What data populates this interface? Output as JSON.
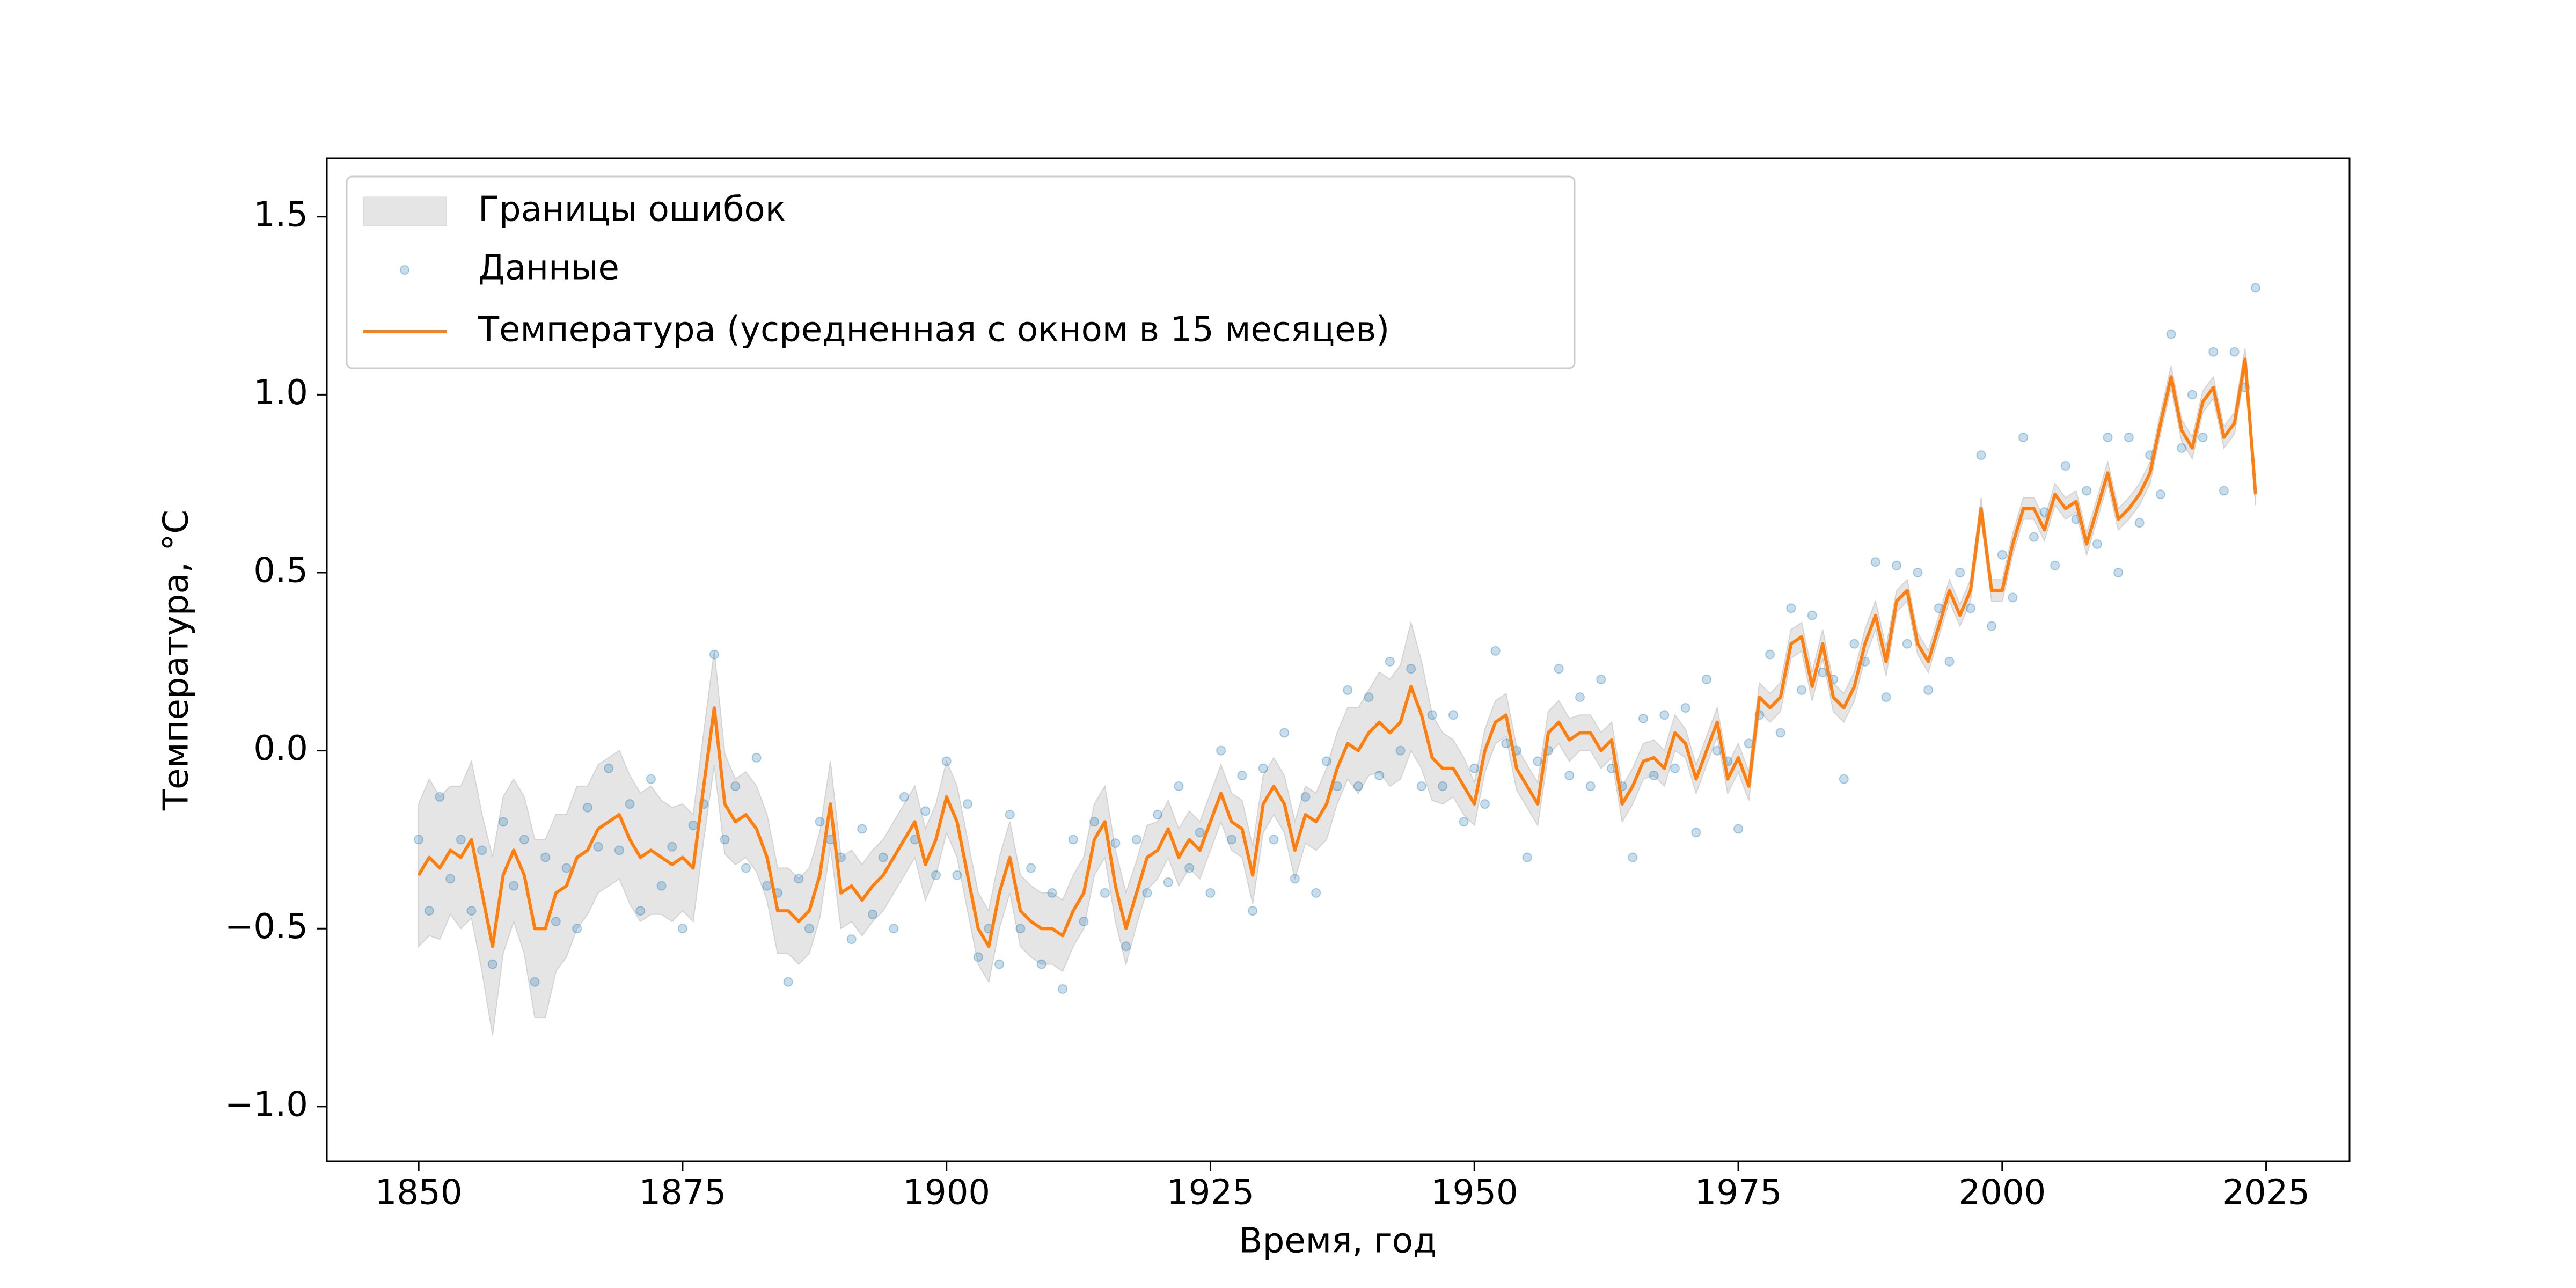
{
  "chart_data": {
    "type": "line",
    "xlabel": "Время, год",
    "ylabel": "Температура, °C",
    "xlim": [
      1841.3,
      2032.9
    ],
    "ylim": [
      -1.154,
      1.664
    ],
    "xticks": [
      1850,
      1875,
      1900,
      1925,
      1950,
      1975,
      2000,
      2025
    ],
    "yticks": [
      {
        "value": -1.0,
        "label": "−1.0"
      },
      {
        "value": -0.5,
        "label": "−0.5"
      },
      {
        "value": 0,
        "label": "0.0"
      },
      0.5,
      {
        "value": 1.0,
        "label": "1.0"
      },
      1.5
    ],
    "legend": "upper left",
    "x": [
      1850,
      1851,
      1852,
      1853,
      1854,
      1855,
      1856,
      1857,
      1858,
      1859,
      1860,
      1861,
      1862,
      1863,
      1864,
      1865,
      1866,
      1867,
      1868,
      1869,
      1870,
      1871,
      1872,
      1873,
      1874,
      1875,
      1876,
      1877,
      1878,
      1879,
      1880,
      1881,
      1882,
      1883,
      1884,
      1885,
      1886,
      1887,
      1888,
      1889,
      1890,
      1891,
      1892,
      1893,
      1894,
      1895,
      1896,
      1897,
      1898,
      1899,
      1900,
      1901,
      1902,
      1903,
      1904,
      1905,
      1906,
      1907,
      1908,
      1909,
      1910,
      1911,
      1912,
      1913,
      1914,
      1915,
      1916,
      1917,
      1918,
      1919,
      1920,
      1921,
      1922,
      1923,
      1924,
      1925,
      1926,
      1927,
      1928,
      1929,
      1930,
      1931,
      1932,
      1933,
      1934,
      1935,
      1936,
      1937,
      1938,
      1939,
      1940,
      1941,
      1942,
      1943,
      1944,
      1945,
      1946,
      1947,
      1948,
      1949,
      1950,
      1951,
      1952,
      1953,
      1954,
      1955,
      1956,
      1957,
      1958,
      1959,
      1960,
      1961,
      1962,
      1963,
      1964,
      1965,
      1966,
      1967,
      1968,
      1969,
      1970,
      1971,
      1972,
      1973,
      1974,
      1975,
      1976,
      1977,
      1978,
      1979,
      1980,
      1981,
      1982,
      1983,
      1984,
      1985,
      1986,
      1987,
      1988,
      1989,
      1990,
      1991,
      1992,
      1993,
      1994,
      1995,
      1996,
      1997,
      1998,
      1999,
      2000,
      2001,
      2002,
      2003,
      2004,
      2005,
      2006,
      2007,
      2008,
      2009,
      2010,
      2011,
      2012,
      2013,
      2014,
      2015,
      2016,
      2017,
      2018,
      2019,
      2020,
      2021,
      2022,
      2023,
      2024
    ],
    "series": [
      {
        "name": "Границы ошибок",
        "style": "band",
        "color": "#d3d3d3",
        "errors": [
          0.2,
          0.22,
          0.2,
          0.18,
          0.2,
          0.22,
          0.22,
          0.25,
          0.22,
          0.2,
          0.22,
          0.25,
          0.25,
          0.22,
          0.2,
          0.2,
          0.18,
          0.18,
          0.18,
          0.18,
          0.18,
          0.18,
          0.18,
          0.16,
          0.16,
          0.15,
          0.15,
          0.15,
          0.16,
          0.14,
          0.12,
          0.12,
          0.12,
          0.12,
          0.12,
          0.12,
          0.12,
          0.12,
          0.12,
          0.12,
          0.1,
          0.1,
          0.1,
          0.1,
          0.1,
          0.1,
          0.1,
          0.1,
          0.1,
          0.1,
          0.1,
          0.1,
          0.1,
          0.1,
          0.1,
          0.1,
          0.1,
          0.1,
          0.1,
          0.1,
          0.1,
          0.1,
          0.1,
          0.1,
          0.1,
          0.1,
          0.1,
          0.1,
          0.09,
          0.09,
          0.08,
          0.08,
          0.08,
          0.08,
          0.08,
          0.08,
          0.08,
          0.08,
          0.08,
          0.08,
          0.08,
          0.08,
          0.08,
          0.08,
          0.08,
          0.08,
          0.1,
          0.1,
          0.1,
          0.12,
          0.12,
          0.14,
          0.15,
          0.16,
          0.18,
          0.15,
          0.12,
          0.1,
          0.08,
          0.08,
          0.06,
          0.06,
          0.06,
          0.06,
          0.06,
          0.06,
          0.06,
          0.06,
          0.06,
          0.06,
          0.05,
          0.05,
          0.05,
          0.05,
          0.05,
          0.05,
          0.05,
          0.05,
          0.05,
          0.05,
          0.04,
          0.04,
          0.04,
          0.04,
          0.04,
          0.04,
          0.04,
          0.04,
          0.04,
          0.04,
          0.04,
          0.04,
          0.04,
          0.04,
          0.04,
          0.04,
          0.04,
          0.04,
          0.04,
          0.04,
          0.03,
          0.03,
          0.03,
          0.03,
          0.03,
          0.03,
          0.03,
          0.03,
          0.03,
          0.03,
          0.03,
          0.03,
          0.03,
          0.03,
          0.03,
          0.03,
          0.03,
          0.03,
          0.03,
          0.03,
          0.03,
          0.03,
          0.03,
          0.03,
          0.03,
          0.03,
          0.03,
          0.03,
          0.03,
          0.03,
          0.03,
          0.03,
          0.03,
          0.03,
          0.03
        ]
      },
      {
        "name": "Данные",
        "style": "scatter",
        "color": "#1f77b4",
        "values": [
          -0.25,
          -0.45,
          -0.13,
          -0.36,
          -0.25,
          -0.45,
          -0.28,
          -0.6,
          -0.2,
          -0.38,
          -0.25,
          -0.65,
          -0.3,
          -0.48,
          -0.33,
          -0.5,
          -0.16,
          -0.27,
          -0.05,
          -0.28,
          -0.15,
          -0.45,
          -0.08,
          -0.38,
          -0.27,
          -0.5,
          -0.21,
          -0.15,
          0.27,
          -0.25,
          -0.1,
          -0.33,
          -0.02,
          -0.38,
          -0.4,
          -0.65,
          -0.36,
          -0.5,
          -0.2,
          -0.25,
          -0.3,
          -0.53,
          -0.22,
          -0.46,
          -0.3,
          -0.5,
          -0.13,
          -0.25,
          -0.17,
          -0.35,
          -0.03,
          -0.35,
          -0.15,
          -0.58,
          -0.5,
          -0.6,
          -0.18,
          -0.5,
          -0.33,
          -0.6,
          -0.4,
          -0.67,
          -0.25,
          -0.48,
          -0.2,
          -0.4,
          -0.26,
          -0.55,
          -0.25,
          -0.4,
          -0.18,
          -0.37,
          -0.1,
          -0.33,
          -0.23,
          -0.4,
          0,
          -0.25,
          -0.07,
          -0.45,
          -0.05,
          -0.25,
          0.05,
          -0.36,
          -0.13,
          -0.4,
          -0.03,
          -0.1,
          0.17,
          -0.1,
          0.15,
          -0.07,
          0.25,
          0,
          0.23,
          -0.1,
          0.1,
          -0.1,
          0.1,
          -0.2,
          -0.05,
          -0.15,
          0.28,
          0.02,
          0,
          -0.3,
          -0.03,
          0,
          0.23,
          -0.07,
          0.15,
          -0.1,
          0.2,
          -0.05,
          -0.1,
          -0.3,
          0.09,
          -0.07,
          0.1,
          -0.05,
          0.12,
          -0.23,
          0.2,
          0,
          -0.03,
          -0.22,
          0.02,
          0.1,
          0.27,
          0.05,
          0.4,
          0.17,
          0.38,
          0.22,
          0.2,
          -0.08,
          0.3,
          0.25,
          0.53,
          0.15,
          0.52,
          0.3,
          0.5,
          0.17,
          0.4,
          0.25,
          0.5,
          0.4,
          0.83,
          0.35,
          0.55,
          0.43,
          0.88,
          0.6,
          0.67,
          0.52,
          0.8,
          0.65,
          0.73,
          0.58,
          0.88,
          0.5,
          0.88,
          0.64,
          0.83,
          0.72,
          1.17,
          0.85,
          1.0,
          0.88,
          1.12,
          0.73,
          1.12,
          1.02,
          1.3
        ]
      },
      {
        "name": "Температура (усредненная с окном в 15 месяцев)",
        "style": "line",
        "color": "#ff7f0e",
        "values": [
          -0.35,
          -0.3,
          -0.33,
          -0.28,
          -0.3,
          -0.25,
          -0.4,
          -0.55,
          -0.35,
          -0.28,
          -0.35,
          -0.5,
          -0.5,
          -0.4,
          -0.38,
          -0.3,
          -0.28,
          -0.22,
          -0.2,
          -0.18,
          -0.25,
          -0.3,
          -0.28,
          -0.3,
          -0.32,
          -0.3,
          -0.33,
          -0.1,
          0.12,
          -0.15,
          -0.2,
          -0.18,
          -0.22,
          -0.3,
          -0.45,
          -0.45,
          -0.48,
          -0.45,
          -0.35,
          -0.15,
          -0.4,
          -0.38,
          -0.42,
          -0.38,
          -0.35,
          -0.3,
          -0.25,
          -0.2,
          -0.32,
          -0.25,
          -0.13,
          -0.2,
          -0.35,
          -0.5,
          -0.55,
          -0.4,
          -0.3,
          -0.45,
          -0.48,
          -0.5,
          -0.5,
          -0.52,
          -0.45,
          -0.4,
          -0.25,
          -0.2,
          -0.38,
          -0.5,
          -0.4,
          -0.3,
          -0.28,
          -0.22,
          -0.3,
          -0.25,
          -0.28,
          -0.2,
          -0.12,
          -0.2,
          -0.22,
          -0.35,
          -0.15,
          -0.1,
          -0.15,
          -0.28,
          -0.18,
          -0.2,
          -0.15,
          -0.05,
          0.02,
          0,
          0.05,
          0.08,
          0.05,
          0.08,
          0.18,
          0.1,
          -0.02,
          -0.05,
          -0.05,
          -0.1,
          -0.15,
          0,
          0.08,
          0.1,
          -0.05,
          -0.1,
          -0.15,
          0.05,
          0.08,
          0.03,
          0.05,
          0.05,
          0,
          0.03,
          -0.15,
          -0.1,
          -0.03,
          -0.02,
          -0.05,
          0.05,
          0.02,
          -0.08,
          0,
          0.08,
          -0.08,
          -0.02,
          -0.1,
          0.15,
          0.12,
          0.15,
          0.3,
          0.32,
          0.18,
          0.3,
          0.15,
          0.12,
          0.18,
          0.3,
          0.38,
          0.25,
          0.42,
          0.45,
          0.3,
          0.25,
          0.35,
          0.45,
          0.38,
          0.45,
          0.68,
          0.45,
          0.45,
          0.58,
          0.68,
          0.68,
          0.62,
          0.72,
          0.68,
          0.7,
          0.58,
          0.68,
          0.78,
          0.65,
          0.68,
          0.72,
          0.78,
          0.92,
          1.05,
          0.9,
          0.85,
          0.98,
          1.02,
          0.88,
          0.92,
          1.1,
          0.72
        ]
      }
    ]
  }
}
